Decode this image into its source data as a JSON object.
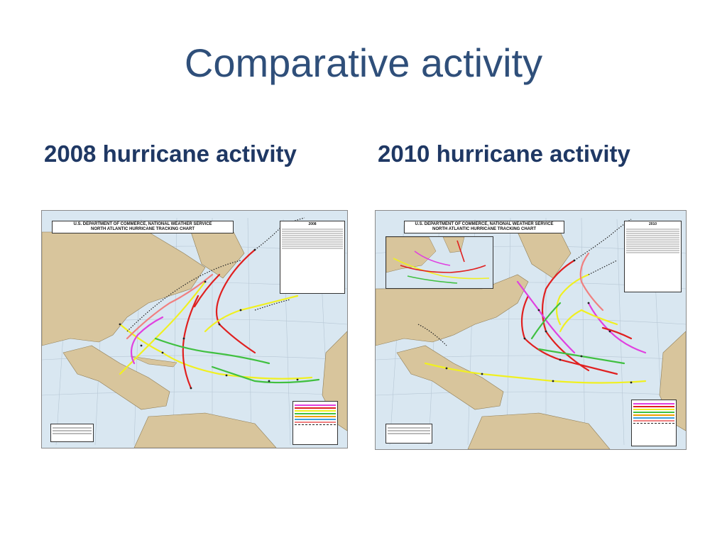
{
  "slide": {
    "title": "Comparative activity",
    "left_subtitle": "2008 hurricane activity",
    "right_subtitle": "2010 hurricane activity"
  },
  "maps": [
    {
      "header_line1": "U.S. DEPARTMENT OF COMMERCE, NATIONAL WEATHER SERVICE",
      "header_line2": "NORTH ATLANTIC HURRICANE TRACKING CHART",
      "year": "2008"
    },
    {
      "header_line1": "U.S. DEPARTMENT OF COMMERCE, NATIONAL WEATHER SERVICE",
      "header_line2": "NORTH ATLANTIC HURRICANE TRACKING CHART",
      "year": "2010"
    }
  ],
  "colors": {
    "ocean": "#d9e7f1",
    "land": "#d8c59c",
    "major_hurricane": "#e040e0",
    "hurricane": "#e02020",
    "tropical_storm": "#f0f020",
    "tropical_depression": "#40c040",
    "subtropical_storm": "#f0a000",
    "subtropical_depression": "#40a0e0",
    "wave_low": "#f08080",
    "extratropical": "#222222"
  }
}
